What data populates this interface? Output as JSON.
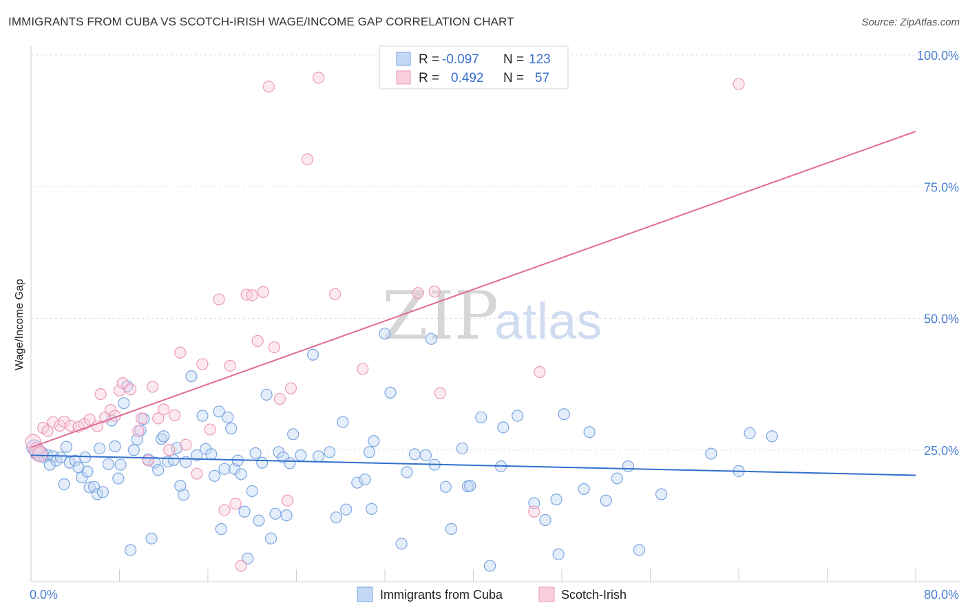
{
  "title": "IMMIGRANTS FROM CUBA VS SCOTCH-IRISH WAGE/INCOME GAP CORRELATION CHART",
  "source": "Source: ZipAtlas.com",
  "watermark": {
    "zip": "ZIP",
    "atlas": "atlas"
  },
  "legend": {
    "rows": [
      {
        "r_label": "R =",
        "r_value": "-0.097",
        "n_label": "N =",
        "n_value": "123",
        "color": "#7aa6e0"
      },
      {
        "r_label": "R =",
        "r_value": "0.492",
        "n_label": "N =",
        "n_value": "57",
        "color": "#ec9ab8"
      }
    ]
  },
  "chart_data": {
    "type": "scatter",
    "title": "IMMIGRANTS FROM CUBA VS SCOTCH-IRISH WAGE/INCOME GAP CORRELATION CHART",
    "xlabel": "",
    "ylabel": "Wage/Income Gap",
    "xlim": [
      0,
      80
    ],
    "ylim": [
      0,
      100
    ],
    "x_tick_labels": [
      "0.0%",
      "80.0%"
    ],
    "y_tick_labels": [
      "25.0%",
      "50.0%",
      "75.0%",
      "100.0%"
    ],
    "y_ticks": [
      25,
      50,
      75,
      100
    ],
    "grid": true,
    "legend_position": "top-center",
    "series": [
      {
        "name": "Immigrants from Cuba",
        "color": "#7aa6e0",
        "trend": {
          "x": [
            0,
            80
          ],
          "y": [
            24.0,
            20.2
          ],
          "color": "#2f6fcc"
        },
        "points": [
          [
            0.3,
            25.5
          ],
          [
            0.6,
            24.5
          ],
          [
            0.9,
            24.2
          ],
          [
            1.2,
            23.6
          ],
          [
            1.5,
            24.0
          ],
          [
            1.7,
            22.2
          ],
          [
            2.0,
            23.8
          ],
          [
            2.3,
            23.0
          ],
          [
            2.7,
            23.6
          ],
          [
            3.0,
            18.5
          ],
          [
            3.2,
            25.6
          ],
          [
            3.5,
            22.6
          ],
          [
            4.0,
            23.0
          ],
          [
            4.3,
            21.7
          ],
          [
            4.6,
            19.8
          ],
          [
            4.9,
            23.6
          ],
          [
            5.1,
            20.9
          ],
          [
            5.3,
            17.9
          ],
          [
            5.7,
            18.0
          ],
          [
            6.0,
            16.6
          ],
          [
            6.2,
            25.3
          ],
          [
            6.5,
            17.0
          ],
          [
            7.0,
            22.3
          ],
          [
            7.3,
            30.6
          ],
          [
            7.6,
            25.7
          ],
          [
            7.9,
            19.6
          ],
          [
            8.1,
            22.2
          ],
          [
            8.4,
            33.9
          ],
          [
            8.7,
            37.1
          ],
          [
            9.0,
            6.0
          ],
          [
            9.3,
            25.0
          ],
          [
            9.6,
            27.0
          ],
          [
            9.9,
            28.7
          ],
          [
            10.2,
            30.9
          ],
          [
            10.6,
            23.2
          ],
          [
            10.9,
            8.2
          ],
          [
            11.2,
            22.6
          ],
          [
            11.5,
            21.2
          ],
          [
            11.8,
            27.1
          ],
          [
            12.0,
            27.6
          ],
          [
            12.4,
            22.8
          ],
          [
            12.9,
            23.1
          ],
          [
            13.2,
            25.4
          ],
          [
            13.5,
            18.2
          ],
          [
            13.8,
            16.5
          ],
          [
            14.0,
            22.7
          ],
          [
            14.5,
            39.0
          ],
          [
            15.0,
            24.0
          ],
          [
            15.5,
            31.5
          ],
          [
            15.8,
            25.2
          ],
          [
            16.3,
            24.2
          ],
          [
            16.6,
            20.1
          ],
          [
            17.0,
            32.3
          ],
          [
            17.2,
            10.0
          ],
          [
            17.5,
            21.4
          ],
          [
            17.8,
            31.2
          ],
          [
            18.1,
            29.1
          ],
          [
            18.4,
            21.4
          ],
          [
            18.7,
            23.0
          ],
          [
            19.0,
            20.4
          ],
          [
            19.3,
            13.3
          ],
          [
            19.6,
            4.4
          ],
          [
            20.0,
            17.2
          ],
          [
            20.3,
            24.4
          ],
          [
            20.6,
            11.6
          ],
          [
            20.9,
            22.6
          ],
          [
            21.3,
            35.5
          ],
          [
            21.7,
            8.2
          ],
          [
            22.1,
            12.9
          ],
          [
            22.4,
            24.6
          ],
          [
            22.8,
            23.6
          ],
          [
            23.1,
            12.6
          ],
          [
            23.4,
            22.5
          ],
          [
            23.7,
            28.0
          ],
          [
            24.4,
            24.0
          ],
          [
            25.5,
            43.1
          ],
          [
            26.0,
            23.8
          ],
          [
            27.0,
            24.6
          ],
          [
            27.6,
            12.2
          ],
          [
            28.2,
            30.3
          ],
          [
            28.5,
            13.7
          ],
          [
            29.5,
            18.8
          ],
          [
            30.2,
            19.4
          ],
          [
            30.6,
            24.6
          ],
          [
            30.8,
            13.8
          ],
          [
            31.0,
            26.7
          ],
          [
            32.0,
            47.1
          ],
          [
            32.5,
            35.9
          ],
          [
            33.5,
            7.2
          ],
          [
            34.0,
            20.8
          ],
          [
            34.7,
            24.2
          ],
          [
            35.7,
            24.0
          ],
          [
            36.2,
            46.1
          ],
          [
            36.5,
            22.2
          ],
          [
            37.5,
            18.0
          ],
          [
            38.0,
            10.0
          ],
          [
            39.0,
            25.3
          ],
          [
            39.5,
            18.1
          ],
          [
            39.7,
            18.2
          ],
          [
            40.7,
            31.2
          ],
          [
            41.5,
            3.0
          ],
          [
            42.5,
            21.9
          ],
          [
            42.7,
            29.3
          ],
          [
            44.0,
            31.5
          ],
          [
            45.5,
            14.9
          ],
          [
            46.5,
            11.7
          ],
          [
            47.5,
            15.6
          ],
          [
            47.7,
            5.2
          ],
          [
            48.2,
            31.8
          ],
          [
            50.0,
            17.6
          ],
          [
            50.5,
            28.4
          ],
          [
            52.0,
            15.4
          ],
          [
            53.0,
            19.6
          ],
          [
            54.0,
            21.9
          ],
          [
            55.0,
            6.0
          ],
          [
            57.0,
            16.6
          ],
          [
            61.5,
            24.3
          ],
          [
            64.0,
            21.0
          ],
          [
            65.0,
            28.2
          ],
          [
            67.0,
            27.6
          ]
        ]
      },
      {
        "name": "Scotch-Irish",
        "color": "#ec9ab8",
        "trend": {
          "x": [
            0,
            80
          ],
          "y": [
            25.5,
            85.5
          ],
          "color": "#e06a93"
        },
        "points": [
          [
            0.2,
            26.5
          ],
          [
            0.5,
            25.0
          ],
          [
            0.8,
            24.2
          ],
          [
            1.1,
            29.2
          ],
          [
            1.5,
            28.6
          ],
          [
            2.0,
            30.3
          ],
          [
            2.6,
            29.6
          ],
          [
            3.0,
            30.4
          ],
          [
            3.6,
            29.6
          ],
          [
            4.3,
            29.4
          ],
          [
            4.8,
            29.9
          ],
          [
            5.3,
            30.8
          ],
          [
            6.0,
            29.5
          ],
          [
            6.3,
            35.6
          ],
          [
            6.7,
            31.2
          ],
          [
            7.2,
            32.6
          ],
          [
            7.6,
            31.5
          ],
          [
            8.0,
            36.3
          ],
          [
            8.3,
            37.7
          ],
          [
            9.0,
            36.5
          ],
          [
            9.7,
            28.6
          ],
          [
            10.0,
            31.0
          ],
          [
            10.6,
            23.0
          ],
          [
            11.0,
            37.0
          ],
          [
            11.5,
            31.0
          ],
          [
            12.0,
            32.7
          ],
          [
            12.5,
            25.0
          ],
          [
            13.0,
            31.6
          ],
          [
            13.5,
            43.5
          ],
          [
            14.0,
            26.0
          ],
          [
            15.0,
            20.5
          ],
          [
            15.5,
            41.3
          ],
          [
            16.2,
            28.9
          ],
          [
            17.0,
            53.6
          ],
          [
            17.5,
            13.6
          ],
          [
            18.0,
            41.0
          ],
          [
            18.5,
            14.8
          ],
          [
            19.0,
            3.0
          ],
          [
            19.5,
            54.5
          ],
          [
            20.0,
            54.4
          ],
          [
            20.5,
            45.7
          ],
          [
            21.0,
            55.0
          ],
          [
            21.5,
            94.0
          ],
          [
            22.0,
            44.5
          ],
          [
            22.5,
            34.7
          ],
          [
            23.2,
            15.4
          ],
          [
            23.5,
            36.7
          ],
          [
            25.0,
            80.2
          ],
          [
            26.0,
            95.7
          ],
          [
            27.5,
            54.6
          ],
          [
            30.0,
            40.4
          ],
          [
            35.0,
            54.8
          ],
          [
            36.5,
            55.1
          ],
          [
            37.0,
            35.8
          ],
          [
            45.5,
            13.3
          ],
          [
            46.0,
            39.8
          ],
          [
            64.0,
            94.5
          ]
        ]
      }
    ]
  },
  "bottom_legend": {
    "items": [
      {
        "label": "Immigrants from Cuba",
        "color": "#7aa6e0"
      },
      {
        "label": "Scotch-Irish",
        "color": "#ec9ab8"
      }
    ]
  }
}
